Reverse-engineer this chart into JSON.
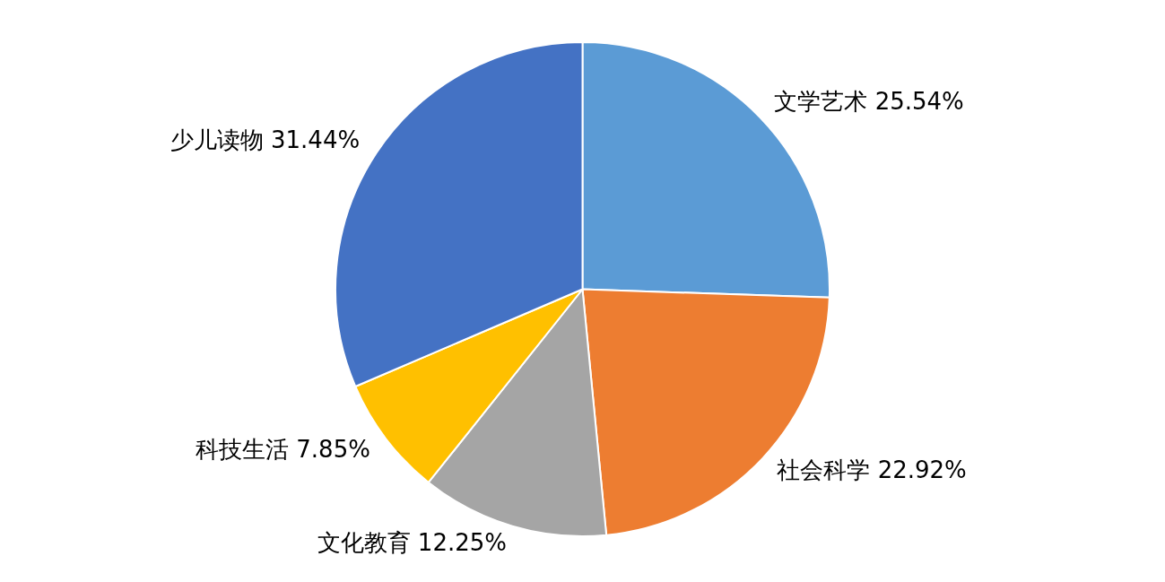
{
  "chart_data": {
    "type": "pie",
    "categories": [
      "文学艺术",
      "社会科学",
      "文化教育",
      "科技生活",
      "少儿读物"
    ],
    "values": [
      25.54,
      22.92,
      12.25,
      7.85,
      31.44
    ],
    "value_labels": [
      "25.54%",
      "22.92%",
      "12.25%",
      "7.85%",
      "31.44%"
    ],
    "colors": [
      "#5b9bd5",
      "#ed7d31",
      "#a5a5a5",
      "#ffc000",
      "#4472c4"
    ],
    "legend": false
  }
}
